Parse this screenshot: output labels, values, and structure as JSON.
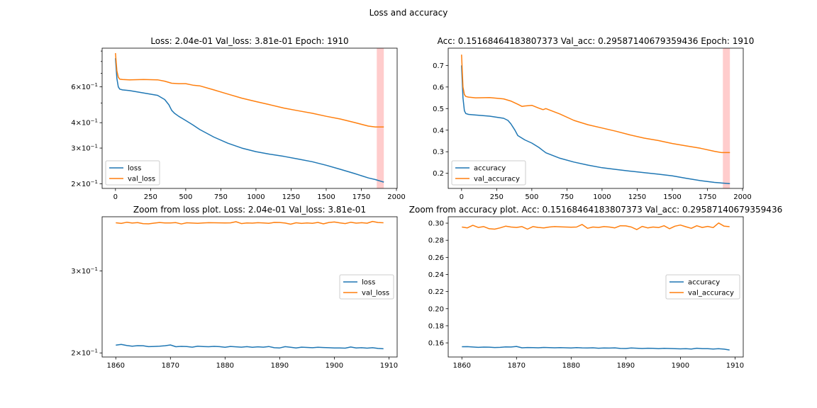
{
  "figure": {
    "suptitle": "Loss and accuracy",
    "colors": {
      "series1": "#1f77b4",
      "series2": "#ff7f0e",
      "highlight": "#ffcccc"
    }
  },
  "chart_data": [
    {
      "type": "line",
      "title": "Loss: 2.04e-01 Val_loss: 3.81e-01 Epoch: 1910",
      "xlabel": "",
      "ylabel": "",
      "yscale": "log",
      "xlim": [
        -95,
        2005
      ],
      "ylim": [
        0.19,
        0.93
      ],
      "xticks": [
        0,
        250,
        500,
        750,
        1000,
        1250,
        1500,
        1750,
        2000
      ],
      "xtick_labels": [
        "0",
        "250",
        "500",
        "750",
        "1000",
        "1250",
        "1500",
        "1750",
        "2000"
      ],
      "yticks": [
        0.2,
        0.3,
        0.4,
        0.6
      ],
      "ytick_labels": [
        [
          "2",
          "−1"
        ],
        [
          "3",
          "−1"
        ],
        [
          "4",
          "−1"
        ],
        [
          "6",
          "−1"
        ]
      ],
      "highlight_span": [
        1860,
        1910
      ],
      "legend": {
        "loc": "lower-left",
        "entries": [
          "loss",
          "val_loss"
        ]
      },
      "series": [
        {
          "name": "loss",
          "x": [
            0,
            10,
            20,
            30,
            50,
            100,
            200,
            300,
            350,
            380,
            400,
            420,
            450,
            500,
            550,
            600,
            700,
            800,
            900,
            1000,
            1100,
            1200,
            1300,
            1400,
            1500,
            1600,
            1700,
            1800,
            1850,
            1910
          ],
          "y": [
            0.83,
            0.66,
            0.6,
            0.585,
            0.58,
            0.575,
            0.56,
            0.545,
            0.52,
            0.49,
            0.46,
            0.445,
            0.43,
            0.41,
            0.39,
            0.37,
            0.34,
            0.317,
            0.3,
            0.288,
            0.28,
            0.273,
            0.265,
            0.257,
            0.247,
            0.236,
            0.225,
            0.214,
            0.21,
            0.204
          ]
        },
        {
          "name": "val_loss",
          "x": [
            0,
            10,
            20,
            30,
            50,
            100,
            200,
            300,
            350,
            400,
            450,
            500,
            550,
            600,
            700,
            800,
            900,
            1000,
            1100,
            1200,
            1300,
            1400,
            1500,
            1600,
            1700,
            1800,
            1850,
            1910
          ],
          "y": [
            0.88,
            0.72,
            0.67,
            0.655,
            0.652,
            0.65,
            0.652,
            0.65,
            0.64,
            0.625,
            0.622,
            0.622,
            0.612,
            0.607,
            0.58,
            0.553,
            0.528,
            0.508,
            0.49,
            0.472,
            0.458,
            0.445,
            0.43,
            0.417,
            0.401,
            0.385,
            0.381,
            0.381
          ]
        }
      ]
    },
    {
      "type": "line",
      "title": "Acc: 0.15168464183807373 Val_acc: 0.29587140679359436 Epoch: 1910",
      "xlabel": "",
      "ylabel": "",
      "xlim": [
        -95,
        2005
      ],
      "ylim": [
        0.13,
        0.78
      ],
      "xticks": [
        0,
        250,
        500,
        750,
        1000,
        1250,
        1500,
        1750,
        2000
      ],
      "xtick_labels": [
        "0",
        "250",
        "500",
        "750",
        "1000",
        "1250",
        "1500",
        "1750",
        "2000"
      ],
      "yticks": [
        0.2,
        0.3,
        0.4,
        0.5,
        0.6,
        0.7
      ],
      "ytick_labels": [
        "0.2",
        "0.3",
        "0.4",
        "0.5",
        "0.6",
        "0.7"
      ],
      "highlight_span": [
        1860,
        1910
      ],
      "legend": {
        "loc": "lower-left",
        "entries": [
          "accuracy",
          "val_accuracy"
        ]
      },
      "series": [
        {
          "name": "accuracy",
          "x": [
            0,
            10,
            20,
            30,
            50,
            100,
            200,
            300,
            330,
            350,
            380,
            400,
            450,
            500,
            550,
            580,
            600,
            700,
            800,
            900,
            1000,
            1100,
            1200,
            1300,
            1400,
            1500,
            1600,
            1700,
            1800,
            1910
          ],
          "y": [
            0.7,
            0.55,
            0.49,
            0.477,
            0.473,
            0.47,
            0.465,
            0.455,
            0.445,
            0.43,
            0.4,
            0.375,
            0.355,
            0.34,
            0.32,
            0.305,
            0.295,
            0.27,
            0.252,
            0.238,
            0.226,
            0.218,
            0.21,
            0.203,
            0.196,
            0.188,
            0.177,
            0.166,
            0.158,
            0.152
          ]
        },
        {
          "name": "val_accuracy",
          "x": [
            0,
            10,
            20,
            30,
            50,
            100,
            200,
            300,
            350,
            400,
            430,
            450,
            500,
            550,
            580,
            600,
            700,
            800,
            900,
            1000,
            1100,
            1200,
            1300,
            1400,
            1500,
            1600,
            1700,
            1800,
            1850,
            1910
          ],
          "y": [
            0.75,
            0.6,
            0.565,
            0.556,
            0.553,
            0.55,
            0.551,
            0.545,
            0.535,
            0.52,
            0.51,
            0.512,
            0.515,
            0.502,
            0.495,
            0.5,
            0.475,
            0.445,
            0.425,
            0.41,
            0.395,
            0.378,
            0.363,
            0.352,
            0.338,
            0.327,
            0.316,
            0.302,
            0.296,
            0.296
          ]
        }
      ]
    },
    {
      "type": "line",
      "title": "Zoom from loss plot. Loss: 2.04e-01 Val_loss: 3.81e-01",
      "xlabel": "",
      "ylabel": "",
      "yscale": "log",
      "xlim": [
        1857.5,
        1911.5
      ],
      "ylim": [
        0.196,
        0.392
      ],
      "xticks": [
        1860,
        1870,
        1880,
        1890,
        1900,
        1910
      ],
      "xtick_labels": [
        "1860",
        "1870",
        "1880",
        "1890",
        "1900",
        "1910"
      ],
      "yticks": [
        0.2,
        0.3
      ],
      "ytick_labels": [
        [
          "2",
          "−1"
        ],
        [
          "3",
          "−1"
        ]
      ],
      "legend": {
        "loc": "center-right",
        "entries": [
          "loss",
          "val_loss"
        ]
      },
      "series": [
        {
          "name": "loss",
          "x": [
            1860,
            1861,
            1862,
            1863,
            1864,
            1865,
            1866,
            1867,
            1868,
            1869,
            1870,
            1871,
            1872,
            1873,
            1874,
            1875,
            1876,
            1877,
            1878,
            1879,
            1880,
            1881,
            1882,
            1883,
            1884,
            1885,
            1886,
            1887,
            1888,
            1889,
            1890,
            1891,
            1892,
            1893,
            1894,
            1895,
            1896,
            1897,
            1898,
            1899,
            1900,
            1901,
            1902,
            1903,
            1904,
            1905,
            1906,
            1907,
            1908,
            1909
          ],
          "y": [
            0.2078,
            0.2085,
            0.2075,
            0.2068,
            0.2073,
            0.2072,
            0.2063,
            0.2065,
            0.2068,
            0.2072,
            0.208,
            0.2062,
            0.2066,
            0.2064,
            0.2058,
            0.2067,
            0.2064,
            0.2062,
            0.2066,
            0.2063,
            0.2056,
            0.2065,
            0.2061,
            0.2058,
            0.2063,
            0.2057,
            0.2061,
            0.2058,
            0.2064,
            0.2052,
            0.205,
            0.2063,
            0.2057,
            0.205,
            0.2058,
            0.2055,
            0.2052,
            0.2057,
            0.2054,
            0.2052,
            0.205,
            0.205,
            0.2048,
            0.2059,
            0.205,
            0.2052,
            0.2048,
            0.2052,
            0.2045,
            0.2041
          ]
        },
        {
          "name": "val_loss",
          "x": [
            1860,
            1861,
            1862,
            1863,
            1864,
            1865,
            1866,
            1867,
            1868,
            1869,
            1870,
            1871,
            1872,
            1873,
            1874,
            1875,
            1876,
            1877,
            1878,
            1879,
            1880,
            1881,
            1882,
            1883,
            1884,
            1885,
            1886,
            1887,
            1888,
            1889,
            1890,
            1891,
            1892,
            1893,
            1894,
            1895,
            1896,
            1897,
            1898,
            1899,
            1900,
            1901,
            1902,
            1903,
            1904,
            1905,
            1906,
            1907,
            1908,
            1909
          ],
          "y": [
            0.3805,
            0.3793,
            0.3815,
            0.38,
            0.3808,
            0.3789,
            0.3785,
            0.3798,
            0.381,
            0.3803,
            0.3803,
            0.3808,
            0.3782,
            0.3805,
            0.38,
            0.3795,
            0.3803,
            0.3806,
            0.3805,
            0.3804,
            0.3803,
            0.3804,
            0.3825,
            0.379,
            0.3801,
            0.3799,
            0.3806,
            0.3802,
            0.3795,
            0.3812,
            0.3811,
            0.38,
            0.3778,
            0.3805,
            0.3793,
            0.3801,
            0.3796,
            0.3812,
            0.3785,
            0.381,
            0.382,
            0.3804,
            0.379,
            0.3815,
            0.3799,
            0.3807,
            0.3797,
            0.383,
            0.381,
            0.3805
          ]
        }
      ]
    },
    {
      "type": "line",
      "title": "Zoom from accuracy plot. Acc: 0.15168464183807373 Val_acc: 0.29587140679359436",
      "xlabel": "",
      "ylabel": "",
      "xlim": [
        1857.5,
        1911.5
      ],
      "ylim": [
        0.1435,
        0.3075
      ],
      "xticks": [
        1860,
        1870,
        1880,
        1890,
        1900,
        1910
      ],
      "xtick_labels": [
        "1860",
        "1870",
        "1880",
        "1890",
        "1900",
        "1910"
      ],
      "yticks": [
        0.16,
        0.18,
        0.2,
        0.22,
        0.24,
        0.26,
        0.28,
        0.3
      ],
      "ytick_labels": [
        "0.16",
        "0.18",
        "0.20",
        "0.22",
        "0.24",
        "0.26",
        "0.28",
        "0.30"
      ],
      "legend": {
        "loc": "center-right",
        "entries": [
          "accuracy",
          "val_accuracy"
        ]
      },
      "series": [
        {
          "name": "accuracy",
          "x": [
            1860,
            1861,
            1862,
            1863,
            1864,
            1865,
            1866,
            1867,
            1868,
            1869,
            1870,
            1871,
            1872,
            1873,
            1874,
            1875,
            1876,
            1877,
            1878,
            1879,
            1880,
            1881,
            1882,
            1883,
            1884,
            1885,
            1886,
            1887,
            1888,
            1889,
            1890,
            1891,
            1892,
            1893,
            1894,
            1895,
            1896,
            1897,
            1898,
            1899,
            1900,
            1901,
            1902,
            1903,
            1904,
            1905,
            1906,
            1907,
            1908,
            1909
          ],
          "y": [
            0.1555,
            0.1556,
            0.1552,
            0.1548,
            0.1551,
            0.155,
            0.1546,
            0.1548,
            0.1553,
            0.1552,
            0.1558,
            0.1543,
            0.1546,
            0.1545,
            0.1543,
            0.1547,
            0.1545,
            0.1543,
            0.1545,
            0.1543,
            0.154,
            0.1545,
            0.1542,
            0.154,
            0.1543,
            0.1538,
            0.1541,
            0.1539,
            0.1542,
            0.1535,
            0.1534,
            0.1541,
            0.1538,
            0.1534,
            0.1538,
            0.1536,
            0.1533,
            0.1537,
            0.1534,
            0.1533,
            0.153,
            0.1533,
            0.1529,
            0.1538,
            0.1532,
            0.1533,
            0.1529,
            0.1532,
            0.1527,
            0.1517
          ]
        },
        {
          "name": "val_accuracy",
          "x": [
            1860,
            1861,
            1862,
            1863,
            1864,
            1865,
            1866,
            1867,
            1868,
            1869,
            1870,
            1871,
            1872,
            1873,
            1874,
            1875,
            1876,
            1877,
            1878,
            1879,
            1880,
            1881,
            1882,
            1883,
            1884,
            1885,
            1886,
            1887,
            1888,
            1889,
            1890,
            1891,
            1892,
            1893,
            1894,
            1895,
            1896,
            1897,
            1898,
            1899,
            1900,
            1901,
            1902,
            1903,
            1904,
            1905,
            1906,
            1907,
            1908,
            1909
          ],
          "y": [
            0.2955,
            0.2945,
            0.2975,
            0.295,
            0.296,
            0.2935,
            0.293,
            0.2945,
            0.2965,
            0.2955,
            0.295,
            0.296,
            0.293,
            0.296,
            0.295,
            0.2945,
            0.2955,
            0.296,
            0.2957,
            0.2955,
            0.2952,
            0.2955,
            0.2985,
            0.294,
            0.2955,
            0.295,
            0.296,
            0.2955,
            0.2945,
            0.297,
            0.2968,
            0.2955,
            0.2925,
            0.2962,
            0.2945,
            0.2955,
            0.2948,
            0.297,
            0.2935,
            0.2965,
            0.2978,
            0.2958,
            0.294,
            0.297,
            0.295,
            0.2962,
            0.2948,
            0.3002,
            0.2965,
            0.2959
          ]
        }
      ]
    }
  ]
}
